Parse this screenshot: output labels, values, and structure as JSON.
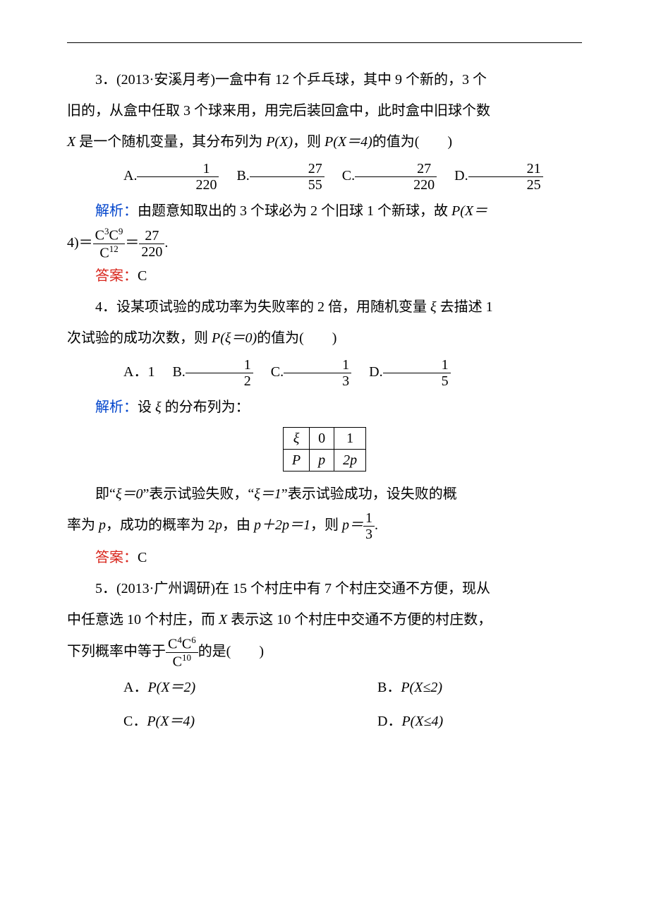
{
  "colors": {
    "blue": "#0044cc",
    "red": "#d8261c",
    "text": "#000000",
    "bg": "#ffffff"
  },
  "q3": {
    "stem_a": "3．(2013·安溪月考)一盒中有 12 个乒乓球，其中 9 个新的，3 个",
    "stem_b": "旧的，从盒中任取 3 个球来用，用完后装回盒中，此时盒中旧球个数",
    "stem_c_prefix": "",
    "stem_c_var": "X",
    "stem_c_mid": " 是一个随机变量，其分布列为 ",
    "stem_c_px": "P(X)",
    "stem_c_mid2": "，则 ",
    "stem_c_px4": "P(X＝4)",
    "stem_c_suffix": "的值为(　　)",
    "opts": {
      "A_label": "A.",
      "A_num": "1",
      "A_den": "220",
      "B_label": "B.",
      "B_num": "27",
      "B_den": "55",
      "C_label": "C.",
      "C_num": "27",
      "C_den": "220",
      "D_label": "D.",
      "D_num": "21",
      "D_den": "25"
    },
    "sol_label": "解析：",
    "sol_a": "由题意知取出的 3 个球必为 2 个旧球 1 个新球，故 ",
    "sol_px": "P(X＝",
    "sol_b": "4)＝",
    "sol_frac1_num": "C³C⁹",
    "sol_frac1_num_sup1": "3",
    "sol_frac1_num_sup2": "9",
    "sol_frac1_den": "C",
    "sol_frac1_den_sup": "12",
    "sol_eq": "＝",
    "sol_frac2_num": "27",
    "sol_frac2_den": "220",
    "sol_period": ".",
    "ans_label": "答案：",
    "ans": "C"
  },
  "q4": {
    "stem_a": "4．设某项试验的成功率为失败率的 2 倍，用随机变量 ",
    "stem_xi": "ξ",
    "stem_b": " 去描述 1",
    "stem_c": "次试验的成功次数，则 ",
    "stem_p": "P(ξ＝0)",
    "stem_d": "的值为(　　)",
    "opts": {
      "A_label": "A．",
      "A_val": "1",
      "B_label": "B.",
      "B_num": "1",
      "B_den": "2",
      "C_label": "C.",
      "C_num": "1",
      "C_den": "3",
      "D_label": "D.",
      "D_num": "1",
      "D_den": "5"
    },
    "sol_label": "解析：",
    "sol_a": "设 ",
    "sol_b": " 的分布列为：",
    "table": {
      "r1": [
        "ξ",
        "0",
        "1"
      ],
      "r2": [
        "P",
        "p",
        "2p"
      ]
    },
    "sol_c": "即“",
    "sol_xi0": "ξ＝0",
    "sol_d": "”表示试验失败，“",
    "sol_xi1": "ξ＝1",
    "sol_e": "”表示试验成功，设失败的概",
    "sol_f": "率为 ",
    "sol_p": "p",
    "sol_g": "，成功的概率为 2",
    "sol_h": "，由 ",
    "sol_eq1": "p＋2p＝1",
    "sol_i": "，则 ",
    "sol_eq2": "p＝",
    "sol_fr_num": "1",
    "sol_fr_den": "3",
    "sol_period": ".",
    "ans_label": "答案：",
    "ans": "C"
  },
  "q5": {
    "stem_a": "5．(2013·广州调研)在 15 个村庄中有 7 个村庄交通不方便，现从",
    "stem_b": "中任意选 10 个村庄，而 ",
    "stem_x": "X",
    "stem_c": " 表示这 10 个村庄中交通不方便的村庄数，",
    "stem_d": "下列概率中等于",
    "frac_num_sup1": "4",
    "frac_num_sup2": "6",
    "frac_den_sup": "10",
    "stem_e": "的是(　　)",
    "opts": {
      "A": "A．",
      "A_val": "P(X＝2)",
      "B": "B．",
      "B_val": "P(X≤2)",
      "C": "C．",
      "C_val": "P(X＝4)",
      "D": "D．",
      "D_val": "P(X≤4)"
    }
  }
}
